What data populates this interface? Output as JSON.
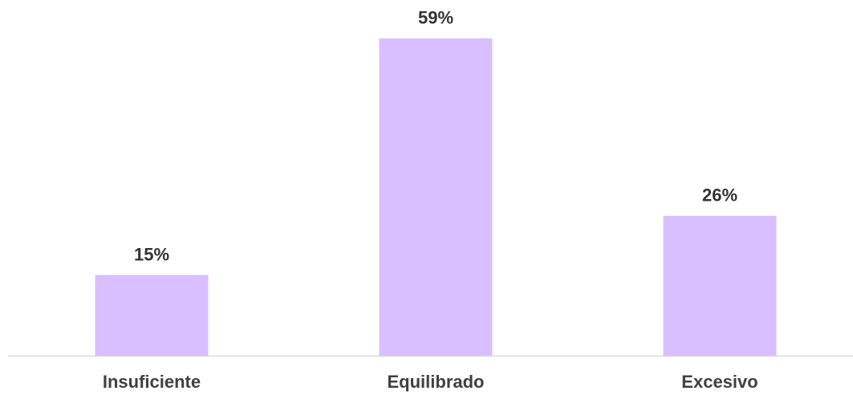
{
  "chart_data": {
    "type": "bar",
    "categories": [
      "Insuficiente",
      "Equilibrado",
      "Excesivo"
    ],
    "values": [
      15,
      59,
      26
    ],
    "value_labels": [
      "15%",
      "59%",
      "26%"
    ],
    "color": "#d9bfff"
  }
}
